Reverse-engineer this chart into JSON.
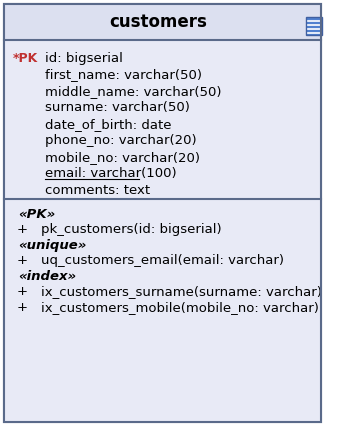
{
  "title": "customers",
  "title_bg": "#dce0f0",
  "title_border": "#7080a0",
  "body_bg": "#e8eaf6",
  "border_color": "#5a6a8a",
  "title_fontsize": 12,
  "body_fontsize": 9.5,
  "fields": [
    {
      "prefix": "*PK",
      "text": "id: bigserial",
      "underline": false,
      "indent": false
    },
    {
      "prefix": "",
      "text": "first_name: varchar(50)",
      "underline": false,
      "indent": true
    },
    {
      "prefix": "",
      "text": "middle_name: varchar(50)",
      "underline": false,
      "indent": true
    },
    {
      "prefix": "",
      "text": "surname: varchar(50)",
      "underline": false,
      "indent": true
    },
    {
      "prefix": "",
      "text": "date_of_birth: date",
      "underline": false,
      "indent": true
    },
    {
      "prefix": "",
      "text": "phone_no: varchar(20)",
      "underline": false,
      "indent": true
    },
    {
      "prefix": "",
      "text": "mobile_no: varchar(20)",
      "underline": false,
      "indent": true
    },
    {
      "prefix": "",
      "text": "email: varchar(100)",
      "underline": true,
      "indent": true
    },
    {
      "prefix": "",
      "text": "comments: text",
      "underline": false,
      "indent": true
    }
  ],
  "constraints": [
    {
      "label": "«PK»",
      "is_header": true
    },
    {
      "prefix": "+",
      "text": "pk_customers(id: bigserial)",
      "is_header": false
    },
    {
      "label": "«unique»",
      "is_header": true
    },
    {
      "prefix": "+",
      "text": "uq_customers_email(email: varchar)",
      "is_header": false
    },
    {
      "label": "«index»",
      "is_header": true
    },
    {
      "prefix": "+",
      "text": "ix_customers_surname(surname: varchar)",
      "is_header": false
    },
    {
      "prefix": "+",
      "text": "ix_customers_mobile(mobile_no: varchar)",
      "is_header": false
    }
  ],
  "icon_color": "#3060c0",
  "text_color": "#000000",
  "header_color": "#404090"
}
